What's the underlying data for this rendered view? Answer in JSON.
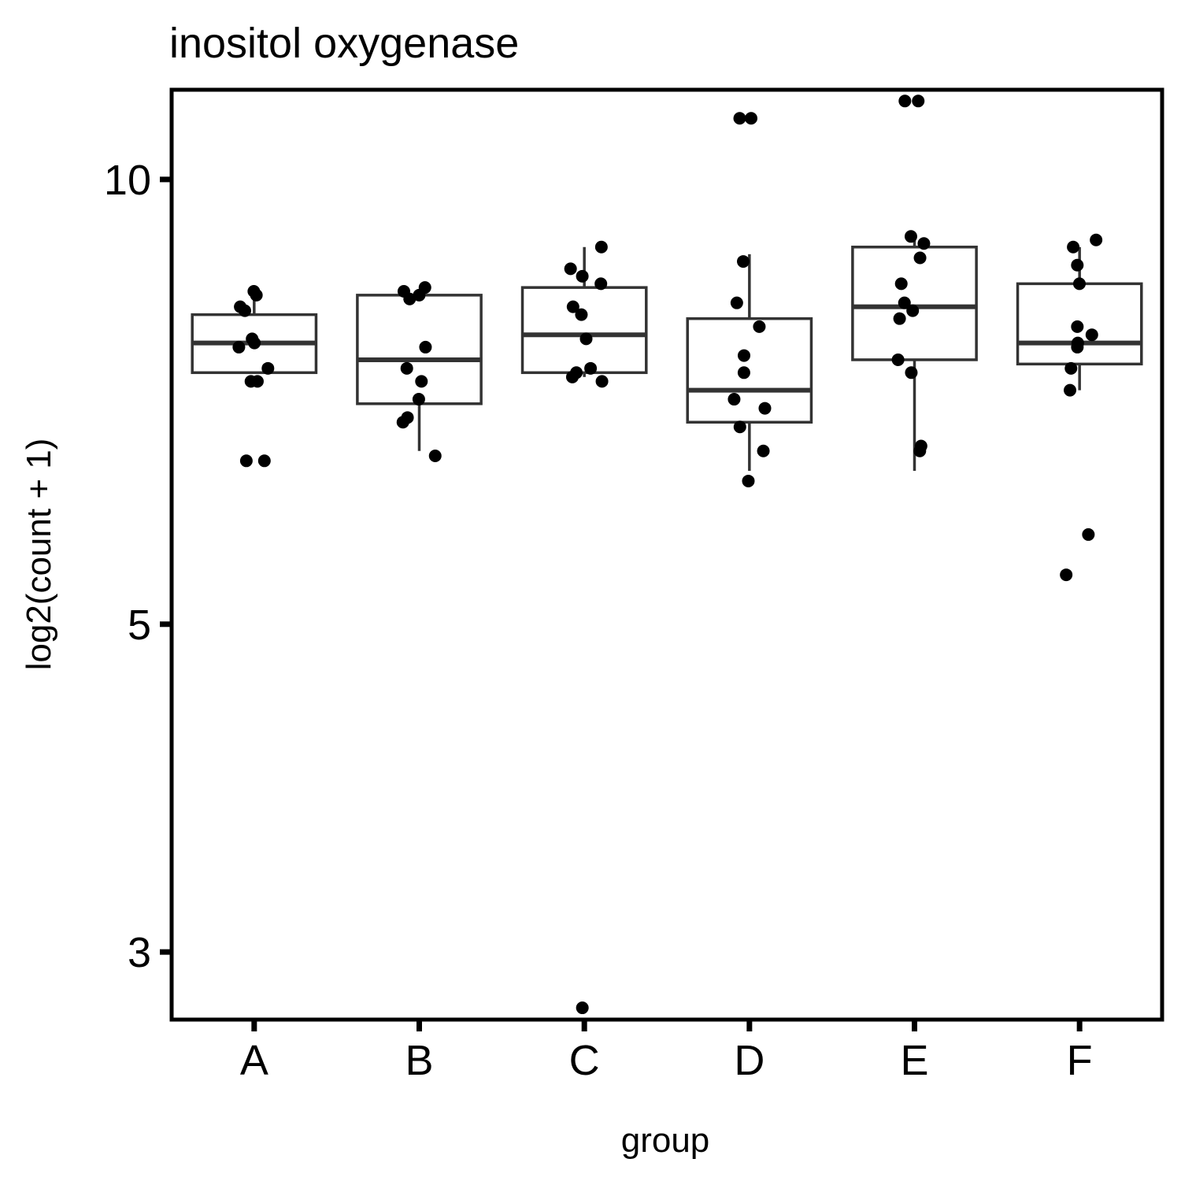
{
  "chart_data": {
    "type": "box",
    "title": "inositol oxygenase",
    "xlabel": "group",
    "ylabel": "log2(count + 1)",
    "y_scale": "log",
    "ylim": [
      2.7,
      11.5
    ],
    "yticks": [
      3,
      5,
      10
    ],
    "grid": false,
    "legend": "none",
    "categories": [
      "A",
      "B",
      "C",
      "D",
      "E",
      "F"
    ],
    "boxes": [
      {
        "group": "A",
        "lower_whisker": 7.4,
        "q1": 7.4,
        "median": 7.75,
        "q3": 8.1,
        "upper_whisker": 8.4
      },
      {
        "group": "B",
        "lower_whisker": 6.55,
        "q1": 7.05,
        "median": 7.55,
        "q3": 8.35,
        "upper_whisker": 8.4
      },
      {
        "group": "C",
        "lower_whisker": 7.35,
        "q1": 7.4,
        "median": 7.85,
        "q3": 8.45,
        "upper_whisker": 9.0
      },
      {
        "group": "D",
        "lower_whisker": 6.35,
        "q1": 6.85,
        "median": 7.2,
        "q3": 8.05,
        "upper_whisker": 8.9
      },
      {
        "group": "E",
        "lower_whisker": 6.35,
        "q1": 7.55,
        "median": 8.2,
        "q3": 9.0,
        "upper_whisker": 9.2
      },
      {
        "group": "F",
        "lower_whisker": 7.2,
        "q1": 7.5,
        "median": 7.75,
        "q3": 8.5,
        "upper_whisker": 9.0
      }
    ],
    "points": [
      {
        "group": "A",
        "values": [
          8.4,
          8.35,
          8.2,
          8.15,
          7.8,
          7.75,
          7.7,
          7.45,
          7.3,
          7.3,
          6.45,
          6.45
        ]
      },
      {
        "group": "B",
        "values": [
          8.45,
          8.4,
          8.35,
          8.3,
          7.7,
          7.45,
          7.3,
          7.1,
          6.9,
          6.85,
          6.5
        ]
      },
      {
        "group": "C",
        "values": [
          9.0,
          8.7,
          8.6,
          8.5,
          8.2,
          8.1,
          7.8,
          7.45,
          7.4,
          7.35,
          7.3,
          2.75
        ]
      },
      {
        "group": "D",
        "values": [
          11.0,
          11.0,
          8.8,
          8.25,
          7.95,
          7.6,
          7.4,
          7.1,
          7.0,
          6.8,
          6.55,
          6.25
        ]
      },
      {
        "group": "E",
        "values": [
          11.3,
          11.3,
          9.15,
          9.05,
          8.85,
          8.5,
          8.25,
          8.15,
          8.05,
          7.55,
          7.4,
          6.6,
          6.55
        ]
      },
      {
        "group": "F",
        "values": [
          9.1,
          9.0,
          8.75,
          8.5,
          7.95,
          7.85,
          7.75,
          7.7,
          7.45,
          7.2,
          5.75,
          5.4
        ]
      }
    ]
  }
}
